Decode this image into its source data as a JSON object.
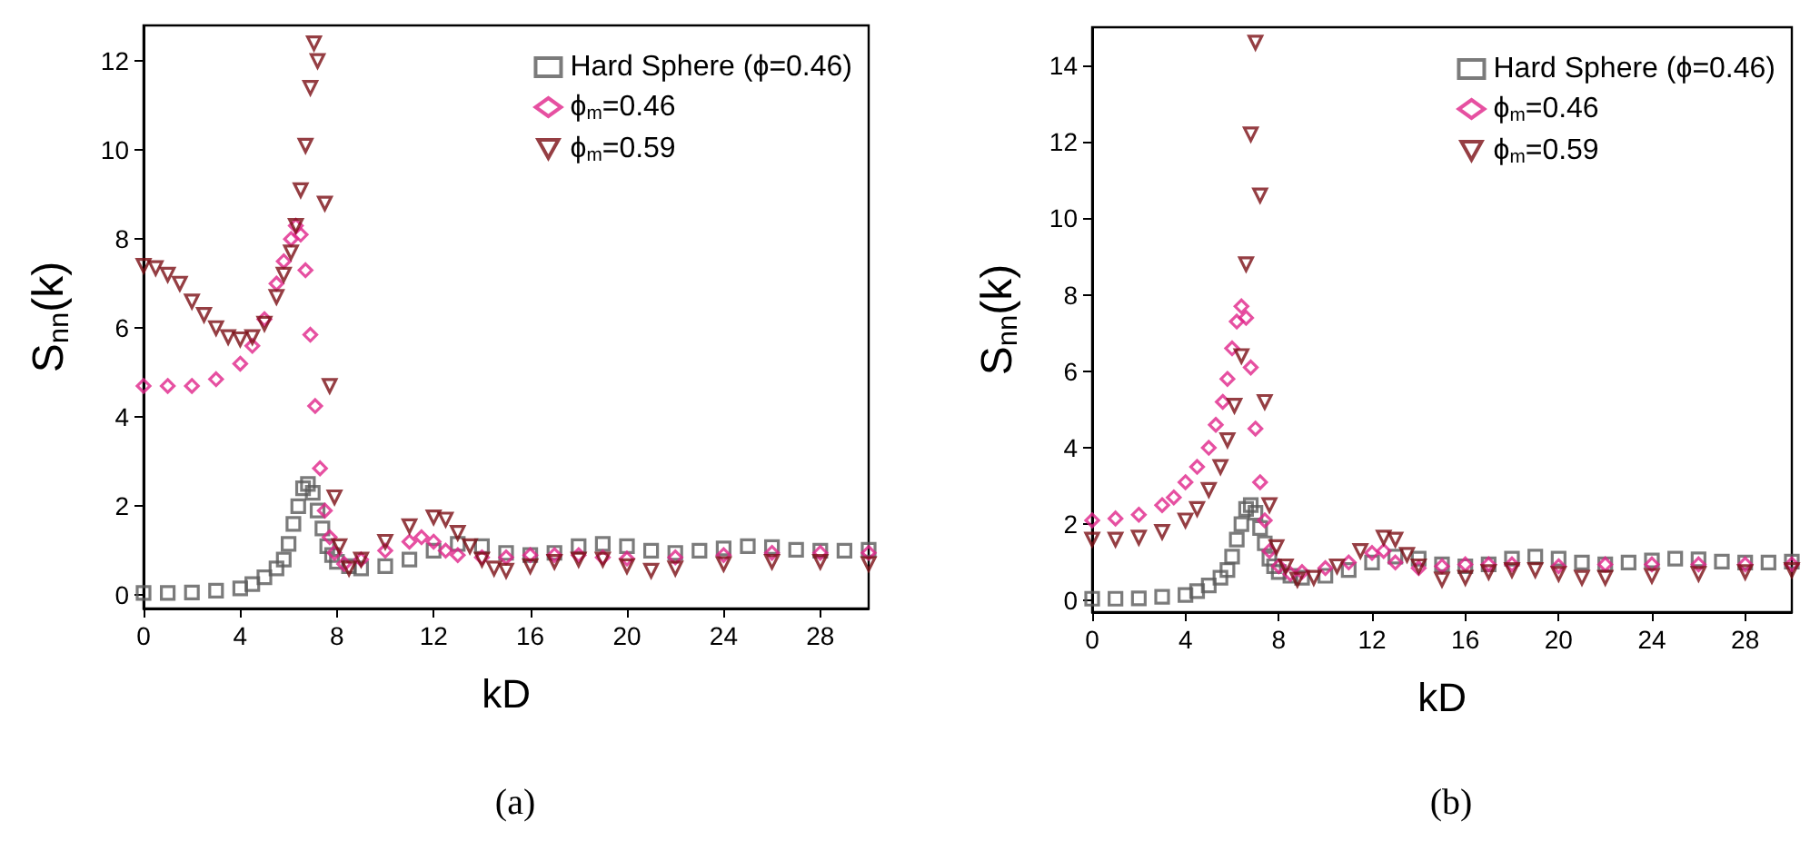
{
  "chart_data": [
    {
      "type": "scatter",
      "title": "(a)",
      "xlabel": "kD",
      "ylabel": "S$_{nn}$(k)",
      "xlim": [
        0,
        30
      ],
      "ylim": [
        -0.3,
        12.8
      ],
      "xticks": [
        0,
        4,
        8,
        12,
        16,
        20,
        24,
        28
      ],
      "yticks": [
        0,
        2,
        4,
        6,
        8,
        10,
        12
      ],
      "grid": false,
      "legend": "top right",
      "series": [
        {
          "name": "Hard Sphere (ϕ=0.46)",
          "color": "#5a5a5a",
          "marker": "square",
          "x": [
            0,
            1,
            2,
            3,
            4,
            4.5,
            5,
            5.5,
            5.8,
            6.0,
            6.2,
            6.4,
            6.6,
            6.8,
            7.0,
            7.2,
            7.4,
            7.6,
            7.8,
            8.0,
            8.5,
            9,
            10,
            11,
            12,
            13,
            14,
            15,
            16,
            17,
            18,
            19,
            20,
            21,
            22,
            23,
            24,
            25,
            26,
            27,
            28,
            29,
            30
          ],
          "values": [
            0.05,
            0.05,
            0.06,
            0.1,
            0.15,
            0.25,
            0.4,
            0.6,
            0.8,
            1.15,
            1.6,
            2.0,
            2.4,
            2.5,
            2.3,
            1.9,
            1.5,
            1.1,
            0.9,
            0.75,
            0.65,
            0.6,
            0.65,
            0.8,
            1.0,
            1.15,
            1.1,
            0.95,
            0.9,
            0.95,
            1.1,
            1.15,
            1.1,
            1.0,
            0.95,
            1.0,
            1.05,
            1.1,
            1.08,
            1.02,
            1.0,
            1.0,
            1.02
          ]
        },
        {
          "name": "ϕ$_{m}$=0.46",
          "color": "#e0248a",
          "marker": "diamond",
          "x": [
            0,
            1,
            2,
            3,
            4,
            4.5,
            5,
            5.5,
            5.8,
            6.1,
            6.3,
            6.5,
            6.7,
            6.9,
            7.1,
            7.3,
            7.5,
            7.7,
            7.9,
            8.3,
            9,
            10,
            11,
            11.5,
            12,
            12.5,
            13,
            14,
            15,
            16,
            17,
            18,
            19,
            20,
            22,
            24,
            26,
            28,
            30
          ],
          "values": [
            4.7,
            4.7,
            4.7,
            4.85,
            5.2,
            5.6,
            6.2,
            7.0,
            7.5,
            8.0,
            8.3,
            8.1,
            7.3,
            5.85,
            4.25,
            2.85,
            1.9,
            1.3,
            0.95,
            0.7,
            0.8,
            1.0,
            1.2,
            1.3,
            1.2,
            1.0,
            0.9,
            0.85,
            0.85,
            0.9,
            0.9,
            0.9,
            0.85,
            0.82,
            0.85,
            0.9,
            0.95,
            0.95,
            0.95
          ]
        },
        {
          "name": "ϕ$_{m}$=0.59",
          "color": "#7a0e14",
          "marker": "triangle",
          "x": [
            0,
            0.5,
            1,
            1.5,
            2,
            2.5,
            3,
            3.5,
            4,
            4.5,
            5,
            5.5,
            5.8,
            6.1,
            6.3,
            6.5,
            6.7,
            6.9,
            7.05,
            7.2,
            7.5,
            7.7,
            7.9,
            8.1,
            8.5,
            9,
            10,
            11,
            12,
            12.5,
            13,
            13.5,
            14,
            14.5,
            15,
            16,
            17,
            18,
            19,
            20,
            21,
            22,
            24,
            26,
            28,
            30
          ],
          "values": [
            7.4,
            7.35,
            7.2,
            7.0,
            6.6,
            6.3,
            6.0,
            5.8,
            5.75,
            5.8,
            6.1,
            6.7,
            7.2,
            7.7,
            8.3,
            9.1,
            10.1,
            11.4,
            12.4,
            12.0,
            8.8,
            4.7,
            2.2,
            1.1,
            0.6,
            0.8,
            1.2,
            1.55,
            1.75,
            1.7,
            1.4,
            1.1,
            0.8,
            0.6,
            0.55,
            0.65,
            0.75,
            0.8,
            0.8,
            0.65,
            0.55,
            0.6,
            0.7,
            0.75,
            0.75,
            0.7
          ]
        }
      ]
    },
    {
      "type": "scatter",
      "title": "(b)",
      "xlabel": "kD",
      "ylabel": "S$_{nn}$(k)",
      "xlim": [
        0,
        30
      ],
      "ylim": [
        -0.3,
        15
      ],
      "xticks": [
        0,
        4,
        8,
        12,
        16,
        20,
        24,
        28
      ],
      "yticks": [
        0,
        2,
        4,
        6,
        8,
        10,
        12,
        14
      ],
      "grid": false,
      "legend": "top right",
      "series": [
        {
          "name": "Hard Sphere (ϕ=0.46)",
          "color": "#5a5a5a",
          "marker": "square",
          "x": [
            0,
            1,
            2,
            3,
            4,
            4.5,
            5,
            5.5,
            5.8,
            6.0,
            6.2,
            6.4,
            6.6,
            6.8,
            7.0,
            7.2,
            7.4,
            7.6,
            7.8,
            8.0,
            8.5,
            9,
            10,
            11,
            12,
            13,
            14,
            15,
            16,
            17,
            18,
            19,
            20,
            21,
            22,
            23,
            24,
            25,
            26,
            27,
            28,
            29,
            30
          ],
          "values": [
            0.05,
            0.05,
            0.06,
            0.1,
            0.15,
            0.25,
            0.4,
            0.6,
            0.8,
            1.15,
            1.6,
            2.0,
            2.4,
            2.5,
            2.3,
            1.9,
            1.5,
            1.1,
            0.9,
            0.75,
            0.65,
            0.6,
            0.65,
            0.8,
            1.0,
            1.15,
            1.1,
            0.95,
            0.9,
            0.95,
            1.1,
            1.15,
            1.1,
            1.0,
            0.95,
            1.0,
            1.05,
            1.1,
            1.08,
            1.02,
            1.0,
            1.0,
            1.02
          ]
        },
        {
          "name": "ϕ$_{m}$=0.46",
          "color": "#e0248a",
          "marker": "diamond",
          "x": [
            0,
            1,
            2,
            3,
            3.5,
            4,
            4.5,
            5,
            5.3,
            5.6,
            5.8,
            6.0,
            6.2,
            6.4,
            6.6,
            6.8,
            7.0,
            7.2,
            7.4,
            7.6,
            8,
            8.5,
            9,
            10,
            11,
            12,
            12.5,
            13,
            14,
            15,
            16,
            17,
            18,
            20,
            22,
            24,
            26,
            28,
            30
          ],
          "values": [
            2.1,
            2.15,
            2.25,
            2.5,
            2.7,
            3.1,
            3.5,
            4.0,
            4.6,
            5.2,
            5.8,
            6.6,
            7.3,
            7.7,
            7.4,
            6.1,
            4.5,
            3.1,
            2.1,
            1.3,
            0.9,
            0.7,
            0.75,
            0.85,
            1.0,
            1.25,
            1.3,
            1.0,
            0.85,
            0.9,
            0.95,
            0.95,
            0.95,
            0.9,
            0.95,
            0.95,
            0.95,
            0.95,
            0.95
          ]
        },
        {
          "name": "ϕ$_{m}$=0.59",
          "color": "#7a0e14",
          "marker": "triangle",
          "x": [
            0,
            1,
            2,
            3,
            4,
            4.5,
            5,
            5.5,
            5.8,
            6.1,
            6.4,
            6.6,
            6.8,
            7.0,
            7.2,
            7.4,
            7.6,
            7.9,
            8.3,
            8.8,
            9.5,
            10.5,
            11.5,
            12.5,
            13,
            13.5,
            14,
            15,
            16,
            17,
            18,
            19,
            20,
            21,
            22,
            24,
            26,
            28,
            30
          ],
          "values": [
            1.6,
            1.6,
            1.65,
            1.8,
            2.1,
            2.4,
            2.9,
            3.5,
            4.2,
            5.1,
            6.4,
            8.8,
            12.2,
            14.6,
            10.6,
            5.2,
            2.5,
            1.4,
            0.9,
            0.55,
            0.6,
            0.9,
            1.3,
            1.65,
            1.6,
            1.2,
            0.9,
            0.55,
            0.6,
            0.75,
            0.8,
            0.8,
            0.7,
            0.6,
            0.6,
            0.65,
            0.7,
            0.75,
            0.8
          ]
        }
      ]
    }
  ]
}
